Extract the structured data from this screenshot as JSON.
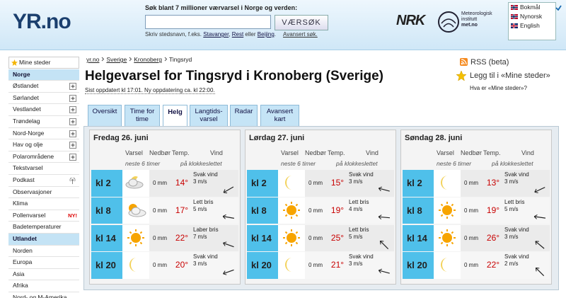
{
  "header": {
    "logo": "YR.no",
    "search_label": "Søk blant 7 millioner værvarsel i Norge og verden:",
    "search_button": "VÆRSØK",
    "search_hint": [
      "Skriv stedsnavn, f.eks. ",
      "Stavanger",
      ", ",
      "Rest",
      " eller ",
      "Beijing",
      "."
    ],
    "advanced_search": "Avansert søk.",
    "nrk": "NRK",
    "met": [
      "Meteorologisk",
      "institutt",
      "met.no"
    ],
    "languages": [
      "Bokmål",
      "Nynorsk",
      "English"
    ]
  },
  "nav": {
    "my_places": "Mine steder",
    "sections": [
      {
        "title": "Norge",
        "items": [
          "Østlandet",
          "Sørlandet",
          "Vestlandet",
          "Trøndelag",
          "Nord-Norge",
          "Hav og olje",
          "Polarområdene",
          "Tekstvarsel",
          "Podkast",
          "Observasjoner",
          "Klima",
          {
            "label": "Pollenvarsel",
            "badge": "NY!"
          },
          "Badetemperaturer"
        ]
      },
      {
        "title": "Utlandet",
        "items": [
          "Norden",
          "Europa",
          "Asia",
          "Afrika",
          "Nord- og M-Amerika"
        ]
      }
    ]
  },
  "breadcrumb": [
    "yr.no",
    "Sverige",
    "Kronoberg",
    "Tingsryd"
  ],
  "title": "Helgevarsel for Tingsryd i Kronoberg (Sverige)",
  "updated": "Sist oppdatert kl 17:01. Ny oppdatering ca. kl 22:00.",
  "side_links": {
    "rss": "RSS (beta)",
    "add": "Legg til i «Mine steder»",
    "what": "Hva er «Mine steder»?"
  },
  "tabs": [
    "Oversikt",
    "Time for time",
    "Helg",
    "Langtids-varsel",
    "Radar",
    "Avansert kart"
  ],
  "active_tab": 2,
  "forecast": {
    "columns": {
      "forecast": "Varsel",
      "precip": "Nedbør",
      "temp": "Temp.",
      "wind": "Vind"
    },
    "subheaders": {
      "forecast": "neste 6 timer",
      "wind": "på klokkeslettet"
    },
    "days": [
      {
        "title": "Fredag 26. juni",
        "rows": [
          {
            "time": "kl 2",
            "precip": "0 mm",
            "temp": "14°",
            "wind": "Svak vind",
            "speed": "3 m/s"
          },
          {
            "time": "kl 8",
            "precip": "0 mm",
            "temp": "17°",
            "wind": "Lett bris",
            "speed": "5 m/s"
          },
          {
            "time": "kl 14",
            "precip": "0 mm",
            "temp": "22°",
            "wind": "Laber bris",
            "speed": "7 m/s"
          },
          {
            "time": "kl 20",
            "precip": "0 mm",
            "temp": "20°",
            "wind": "Svak vind",
            "speed": "3 m/s"
          }
        ]
      },
      {
        "title": "Lørdag 27. juni",
        "rows": [
          {
            "time": "kl 2",
            "precip": "0 mm",
            "temp": "15°",
            "wind": "Svak vind",
            "speed": "3 m/s"
          },
          {
            "time": "kl 8",
            "precip": "0 mm",
            "temp": "19°",
            "wind": "Lett bris",
            "speed": "4 m/s"
          },
          {
            "time": "kl 14",
            "precip": "0 mm",
            "temp": "25°",
            "wind": "Lett bris",
            "speed": "5 m/s"
          },
          {
            "time": "kl 20",
            "precip": "0 mm",
            "temp": "21°",
            "wind": "Svak vind",
            "speed": "3 m/s"
          }
        ]
      },
      {
        "title": "Søndag 28. juni",
        "rows": [
          {
            "time": "kl 2",
            "precip": "0 mm",
            "temp": "13°",
            "wind": "Svak vind",
            "speed": "3 m/s"
          },
          {
            "time": "kl 8",
            "precip": "0 mm",
            "temp": "19°",
            "wind": "Lett bris",
            "speed": "5 m/s"
          },
          {
            "time": "kl 14",
            "precip": "0 mm",
            "temp": "26°",
            "wind": "Svak vind",
            "speed": "3 m/s"
          },
          {
            "time": "kl 20",
            "precip": "0 mm",
            "temp": "22°",
            "wind": "Svak vind",
            "speed": "2 m/s"
          }
        ]
      }
    ]
  }
}
